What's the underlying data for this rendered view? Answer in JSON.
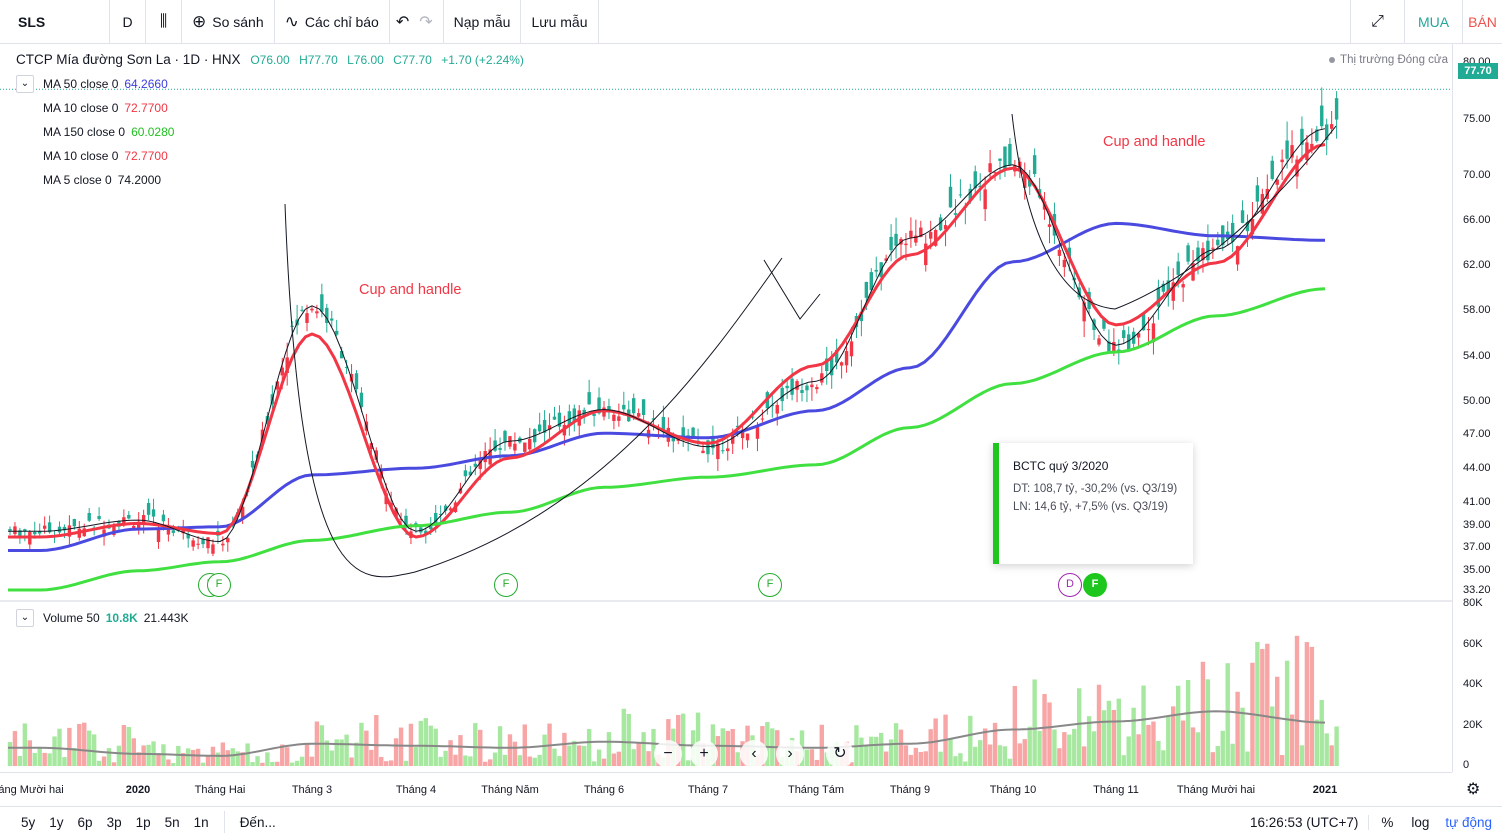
{
  "toolbar": {
    "symbol": "SLS",
    "resolution": "D",
    "compare": "So sánh",
    "indicators": "Các chỉ báo",
    "load_template": "Nạp mẫu",
    "save_template": "Lưu mẫu",
    "buy": "MUA",
    "sell": "BÁN"
  },
  "header": {
    "title": "CTCP Mía đường Sơn La · 1D · HNX",
    "open": "O76.00",
    "high": "H77.70",
    "low": "L76.00",
    "close": "C77.70",
    "change": "+1.70 (+2.24%)",
    "market_status": "Thị trường Đóng cửa"
  },
  "indicators": [
    {
      "name": "MA 50 close 0",
      "value": "64.2660",
      "color": "#3c3cdf"
    },
    {
      "name": "MA 10 close 0",
      "value": "72.7700",
      "color": "#f23645"
    },
    {
      "name": "MA 150 close 0",
      "value": "60.0280",
      "color": "#40e040"
    },
    {
      "name": "MA 10 close 0",
      "value": "72.7700",
      "color": "#f23645"
    },
    {
      "name": "MA 5 close 0",
      "value": "74.2000",
      "color": "#131722"
    }
  ],
  "volume_legend": {
    "name": "Volume 50",
    "value": "10.8K",
    "avg": "21.443K"
  },
  "annotations": [
    "Cup and handle",
    "Cup and handle"
  ],
  "events": [
    "F",
    "F",
    "F",
    "F",
    "D",
    "F"
  ],
  "card": {
    "title": "BCTC quý 3/2020",
    "line1": "DT: 108,7 tỷ, -30,2% (vs. Q3/19)",
    "line2": "LN: 14,6 tỷ, +7,5% (vs. Q3/19)"
  },
  "price_axis": {
    "ticks": [
      "80.00",
      "75.00",
      "70.00",
      "66.00",
      "62.00",
      "58.00",
      "54.00",
      "50.00",
      "47.00",
      "44.00",
      "41.00",
      "39.00",
      "37.00",
      "35.00",
      "33.20"
    ],
    "current": "77.70"
  },
  "volume_axis": {
    "ticks": [
      "80K",
      "60K",
      "40K",
      "20K",
      "0"
    ]
  },
  "time_axis": {
    "ticks": [
      "háng Mười hai",
      "2020",
      "Tháng Hai",
      "Tháng 3",
      "Tháng 4",
      "Tháng Năm",
      "Tháng 6",
      "Tháng 7",
      "Tháng Tám",
      "Tháng 9",
      "Tháng 10",
      "Tháng 11",
      "Tháng Mười hai",
      "2021"
    ]
  },
  "zoom_controls": [
    "−",
    "+",
    "‹",
    "›",
    "↻"
  ],
  "bottom": {
    "ranges": [
      "5y",
      "1y",
      "6p",
      "3p",
      "1p",
      "5n",
      "1n"
    ],
    "goto": "Đến...",
    "clock": "16:26:53 (UTC+7)",
    "percent": "%",
    "log": "log",
    "auto": "tự động"
  },
  "colors": {
    "up": "#22ab94",
    "down": "#f23645",
    "up_vol": "#a7e8a0",
    "down_vol": "#f7a5a5",
    "vol_ma": "#888888"
  },
  "chart_data": {
    "type": "line",
    "title": "CTCP Mía đường Sơn La · 1D · HNX",
    "x": [
      "Tháng Mười hai",
      "2020",
      "Tháng Hai",
      "Tháng 3",
      "Tháng 4",
      "Tháng Năm",
      "Tháng 6",
      "Tháng 7",
      "Tháng Tám",
      "Tháng 9",
      "Tháng 10",
      "Tháng 11",
      "Tháng Mười hai",
      "2021"
    ],
    "ylim": [
      32.5,
      81
    ],
    "series": [
      {
        "name": "MA 50 close 0",
        "values": [
          36.8,
          38.7,
          38.9,
          43.5,
          44.1,
          45.2,
          47.2,
          46.8,
          49.2,
          53.0,
          62.4,
          65.8,
          64.7,
          64.3
        ]
      },
      {
        "name": "MA 10 close 0",
        "values": [
          38.0,
          39.2,
          38.3,
          56.0,
          38.0,
          45.0,
          49.2,
          46.3,
          53.2,
          63.0,
          70.7,
          56.8,
          62.3,
          72.8
        ]
      },
      {
        "name": "MA 150 close 0",
        "values": [
          33.3,
          35.0,
          35.8,
          37.7,
          39.0,
          40.2,
          42.4,
          43.3,
          44.4,
          47.7,
          51.6,
          54.4,
          57.6,
          60.0
        ]
      },
      {
        "name": "MA 5 close 0",
        "values": [
          38.5,
          39.5,
          37.6,
          58.5,
          38.5,
          46.5,
          49.3,
          46.0,
          51.8,
          64.5,
          71.0,
          55.0,
          63.5,
          74.2
        ]
      }
    ],
    "volume": {
      "name": "Volume 50",
      "ylim": [
        0,
        80000
      ],
      "ma": [
        9000,
        6000,
        5000,
        11000,
        10000,
        9000,
        12000,
        10000,
        9000,
        11000,
        18000,
        22000,
        27000,
        21443
      ]
    }
  }
}
